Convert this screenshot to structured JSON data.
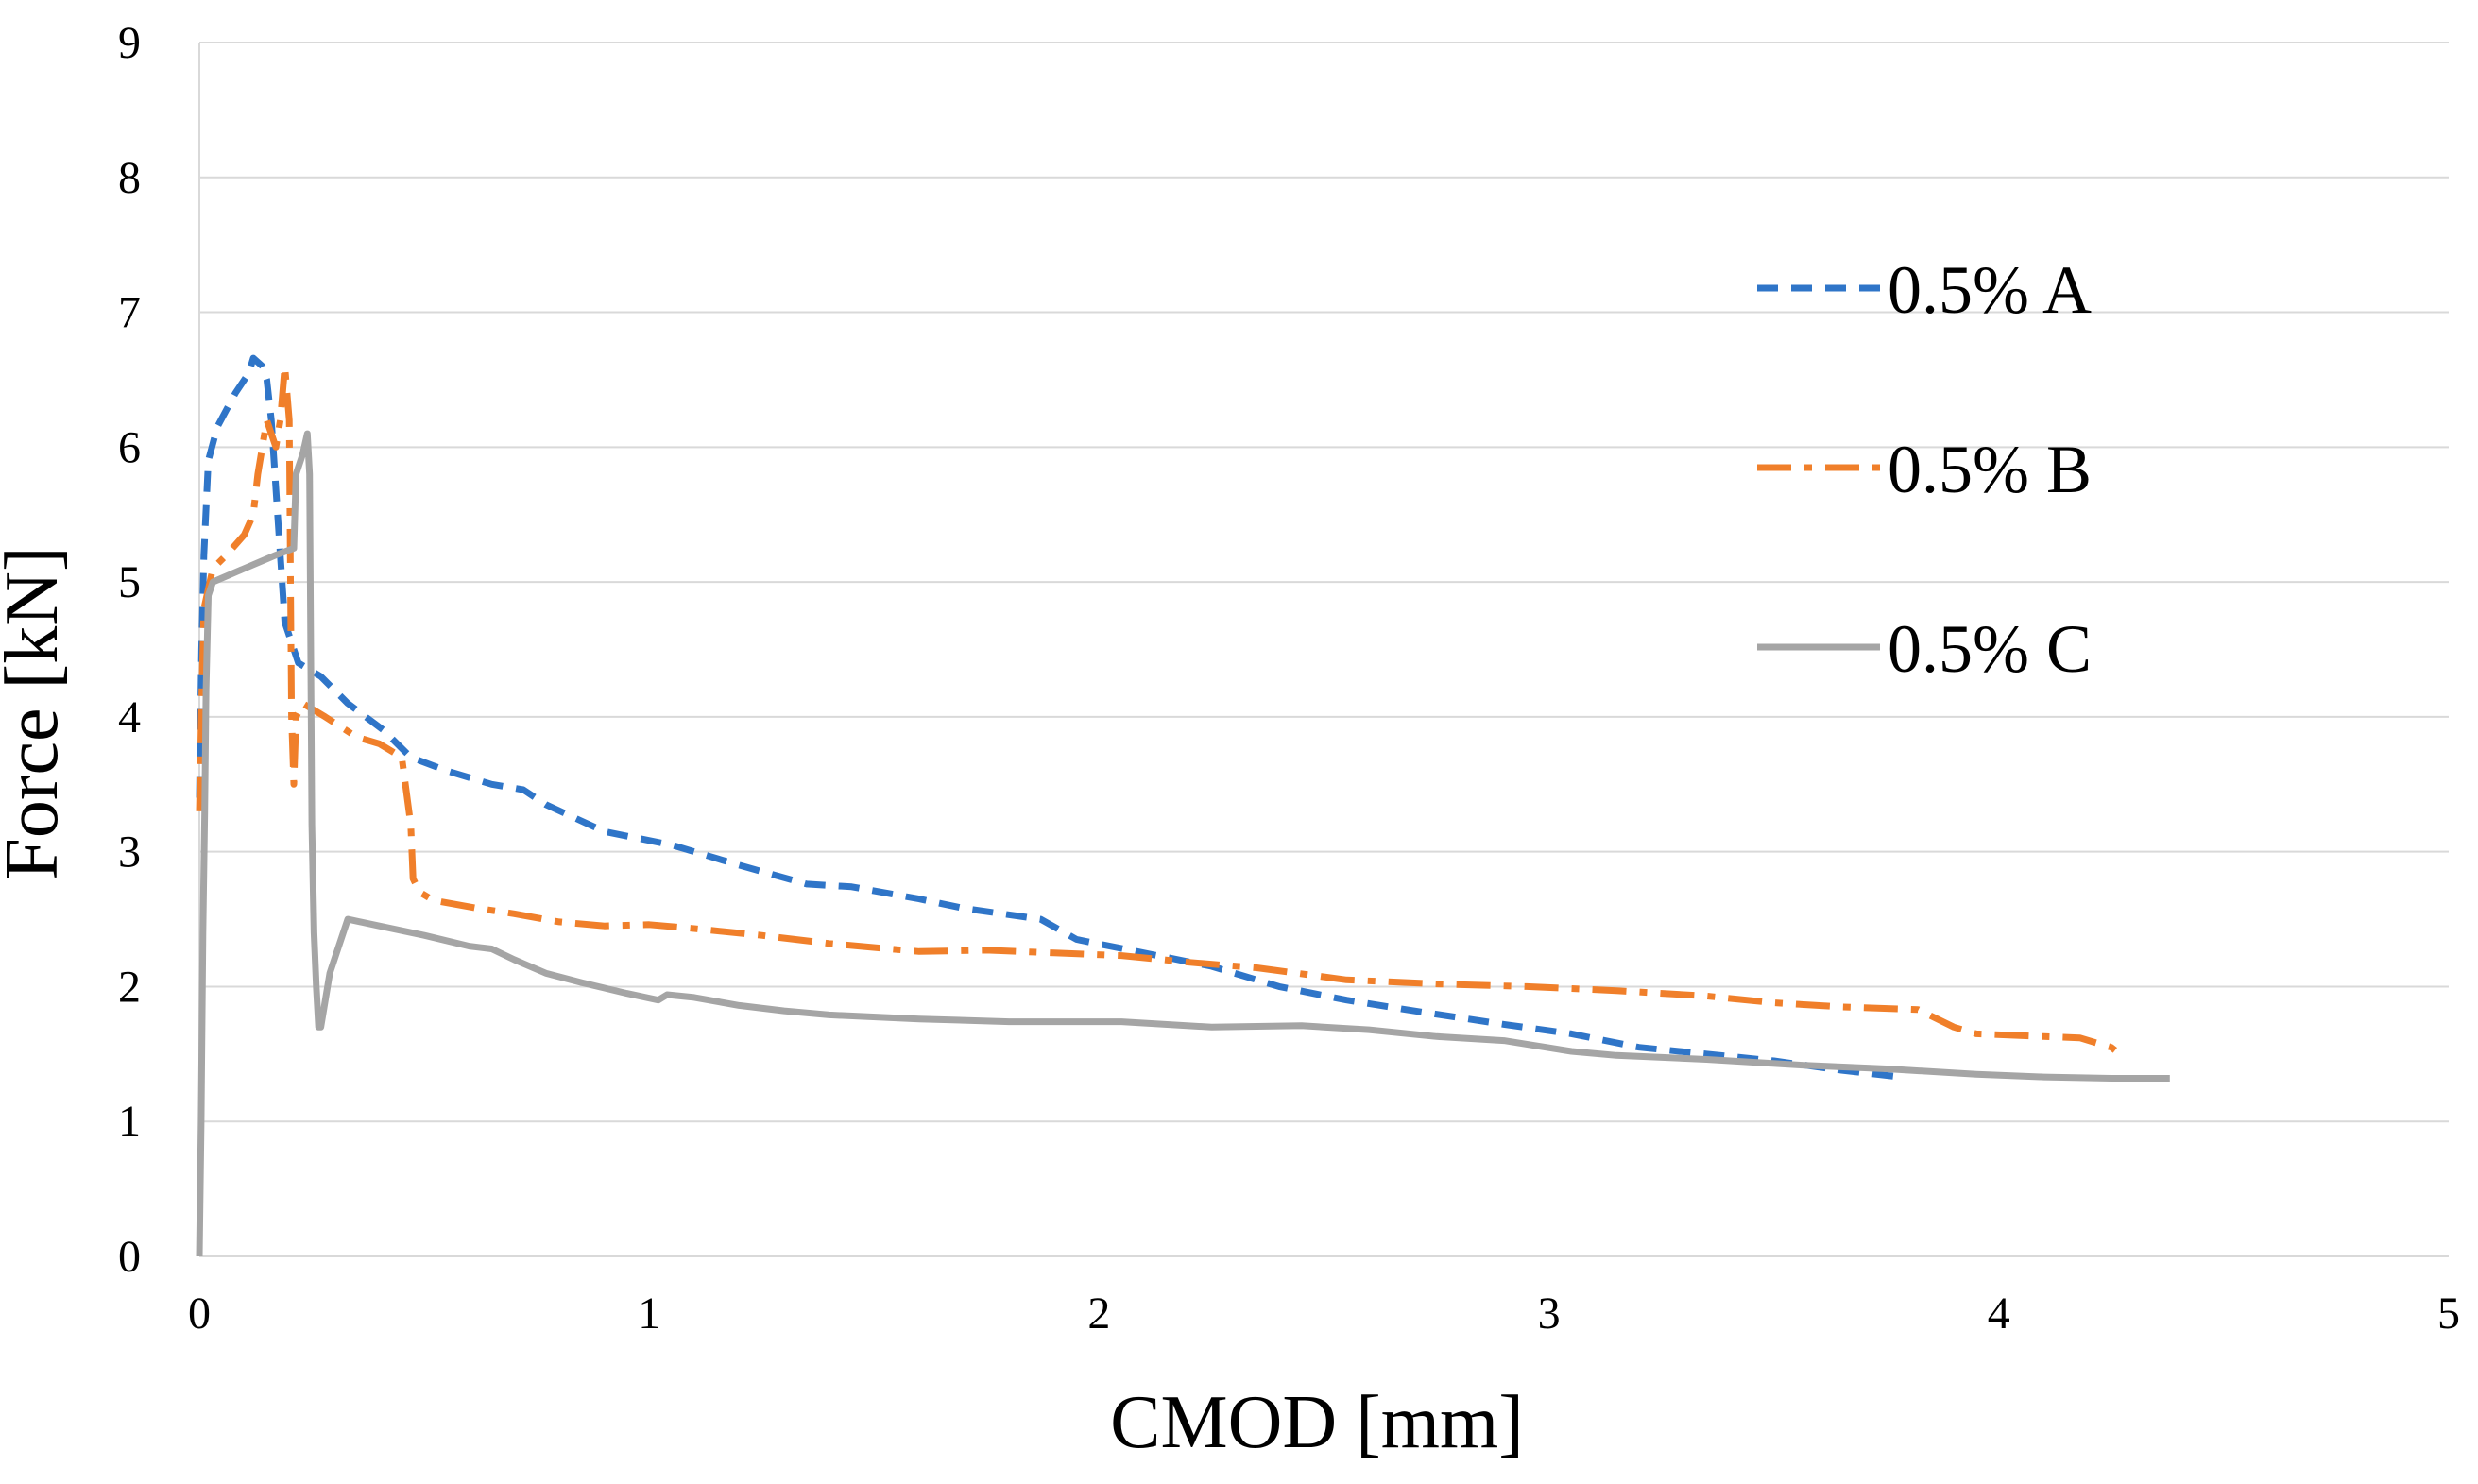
{
  "chart_data": {
    "type": "line",
    "title": "",
    "xlabel": "CMOD [mm]",
    "ylabel": "Force [kN]",
    "xlim": [
      0,
      5
    ],
    "ylim": [
      0,
      9
    ],
    "x_ticks": [
      "0",
      "1",
      "2",
      "3",
      "4",
      "5"
    ],
    "y_ticks": [
      "0",
      "1",
      "2",
      "3",
      "4",
      "5",
      "6",
      "7",
      "8",
      "9"
    ],
    "grid": "horizontal",
    "legend_position": "right",
    "series": [
      {
        "name": "0.5% A",
        "color": "#2F75C8",
        "dash": "dashed",
        "points": [
          [
            0.0,
            3.4
          ],
          [
            0.005,
            4.5
          ],
          [
            0.01,
            5.2
          ],
          [
            0.02,
            5.9
          ],
          [
            0.04,
            6.15
          ],
          [
            0.08,
            6.4
          ],
          [
            0.11,
            6.55
          ],
          [
            0.12,
            6.66
          ],
          [
            0.14,
            6.6
          ],
          [
            0.15,
            6.5
          ],
          [
            0.16,
            6.2
          ],
          [
            0.18,
            5.2
          ],
          [
            0.19,
            4.7
          ],
          [
            0.22,
            4.4
          ],
          [
            0.27,
            4.3
          ],
          [
            0.33,
            4.1
          ],
          [
            0.41,
            3.9
          ],
          [
            0.47,
            3.7
          ],
          [
            0.55,
            3.6
          ],
          [
            0.65,
            3.5
          ],
          [
            0.72,
            3.46
          ],
          [
            0.77,
            3.35
          ],
          [
            0.9,
            3.15
          ],
          [
            1.05,
            3.05
          ],
          [
            1.2,
            2.9
          ],
          [
            1.35,
            2.76
          ],
          [
            1.45,
            2.74
          ],
          [
            1.6,
            2.65
          ],
          [
            1.7,
            2.58
          ],
          [
            1.87,
            2.5
          ],
          [
            1.95,
            2.35
          ],
          [
            2.1,
            2.25
          ],
          [
            2.25,
            2.15
          ],
          [
            2.4,
            2.0
          ],
          [
            2.55,
            1.9
          ],
          [
            2.7,
            1.82
          ],
          [
            2.9,
            1.72
          ],
          [
            3.05,
            1.65
          ],
          [
            3.2,
            1.55
          ],
          [
            3.35,
            1.5
          ],
          [
            3.5,
            1.45
          ],
          [
            3.65,
            1.38
          ],
          [
            3.78,
            1.33
          ]
        ]
      },
      {
        "name": "0.5% B",
        "color": "#F07F2A",
        "dash": "dashdot",
        "points": [
          [
            0.0,
            3.3
          ],
          [
            0.005,
            4.1
          ],
          [
            0.01,
            4.8
          ],
          [
            0.03,
            5.1
          ],
          [
            0.06,
            5.2
          ],
          [
            0.1,
            5.35
          ],
          [
            0.12,
            5.5
          ],
          [
            0.13,
            5.8
          ],
          [
            0.15,
            6.2
          ],
          [
            0.17,
            6.0
          ],
          [
            0.18,
            6.2
          ],
          [
            0.19,
            6.6
          ],
          [
            0.2,
            6.2
          ],
          [
            0.205,
            4.0
          ],
          [
            0.21,
            3.5
          ],
          [
            0.215,
            4.0
          ],
          [
            0.23,
            4.1
          ],
          [
            0.28,
            4.0
          ],
          [
            0.35,
            3.85
          ],
          [
            0.4,
            3.8
          ],
          [
            0.45,
            3.7
          ],
          [
            0.47,
            3.2
          ],
          [
            0.475,
            2.8
          ],
          [
            0.49,
            2.7
          ],
          [
            0.52,
            2.64
          ],
          [
            0.62,
            2.58
          ],
          [
            0.7,
            2.54
          ],
          [
            0.8,
            2.48
          ],
          [
            0.9,
            2.45
          ],
          [
            1.0,
            2.46
          ],
          [
            1.1,
            2.43
          ],
          [
            1.25,
            2.38
          ],
          [
            1.4,
            2.32
          ],
          [
            1.6,
            2.26
          ],
          [
            1.75,
            2.27
          ],
          [
            1.9,
            2.25
          ],
          [
            2.05,
            2.23
          ],
          [
            2.2,
            2.18
          ],
          [
            2.35,
            2.14
          ],
          [
            2.55,
            2.05
          ],
          [
            2.75,
            2.02
          ],
          [
            2.95,
            2.0
          ],
          [
            3.15,
            1.97
          ],
          [
            3.35,
            1.93
          ],
          [
            3.5,
            1.88
          ],
          [
            3.65,
            1.85
          ],
          [
            3.82,
            1.83
          ],
          [
            3.9,
            1.7
          ],
          [
            3.95,
            1.65
          ],
          [
            4.1,
            1.63
          ],
          [
            4.18,
            1.62
          ],
          [
            4.25,
            1.55
          ],
          [
            4.28,
            1.47
          ]
        ]
      },
      {
        "name": "0.5% C",
        "color": "#A5A5A5",
        "dash": "solid",
        "points": [
          [
            0.0,
            0.0
          ],
          [
            0.004,
            1.0
          ],
          [
            0.008,
            2.4
          ],
          [
            0.012,
            3.3
          ],
          [
            0.015,
            4.2
          ],
          [
            0.02,
            4.9
          ],
          [
            0.03,
            5.0
          ],
          [
            0.1,
            5.1
          ],
          [
            0.17,
            5.2
          ],
          [
            0.21,
            5.25
          ],
          [
            0.215,
            5.8
          ],
          [
            0.23,
            5.95
          ],
          [
            0.24,
            6.1
          ],
          [
            0.245,
            5.8
          ],
          [
            0.25,
            3.2
          ],
          [
            0.255,
            2.4
          ],
          [
            0.26,
            2.0
          ],
          [
            0.265,
            1.7
          ],
          [
            0.27,
            1.7
          ],
          [
            0.29,
            2.1
          ],
          [
            0.31,
            2.3
          ],
          [
            0.33,
            2.5
          ],
          [
            0.4,
            2.45
          ],
          [
            0.5,
            2.38
          ],
          [
            0.6,
            2.3
          ],
          [
            0.65,
            2.28
          ],
          [
            0.7,
            2.2
          ],
          [
            0.77,
            2.1
          ],
          [
            0.85,
            2.03
          ],
          [
            0.95,
            1.95
          ],
          [
            1.02,
            1.9
          ],
          [
            1.04,
            1.94
          ],
          [
            1.1,
            1.92
          ],
          [
            1.2,
            1.86
          ],
          [
            1.3,
            1.82
          ],
          [
            1.4,
            1.79
          ],
          [
            1.6,
            1.76
          ],
          [
            1.8,
            1.74
          ],
          [
            2.05,
            1.74
          ],
          [
            2.25,
            1.7
          ],
          [
            2.45,
            1.71
          ],
          [
            2.6,
            1.68
          ],
          [
            2.75,
            1.63
          ],
          [
            2.9,
            1.6
          ],
          [
            3.05,
            1.52
          ],
          [
            3.15,
            1.49
          ],
          [
            3.35,
            1.46
          ],
          [
            3.55,
            1.42
          ],
          [
            3.75,
            1.39
          ],
          [
            3.95,
            1.35
          ],
          [
            4.1,
            1.33
          ],
          [
            4.25,
            1.32
          ],
          [
            4.38,
            1.32
          ]
        ]
      }
    ]
  }
}
